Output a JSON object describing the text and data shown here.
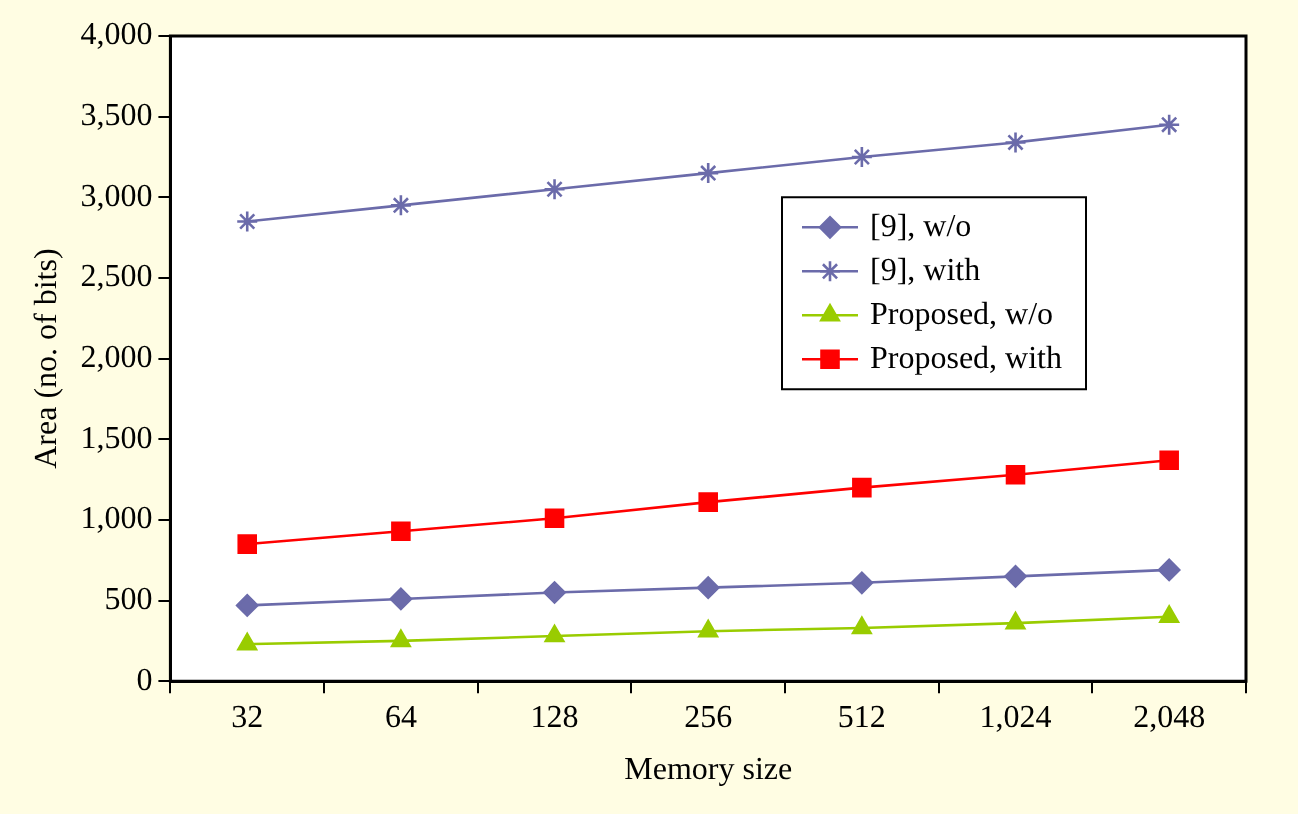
{
  "chart_data": {
    "type": "line",
    "xlabel": "Memory size",
    "ylabel": "Area (no. of bits)",
    "categories": [
      "32",
      "64",
      "128",
      "256",
      "512",
      "1,024",
      "2,048"
    ],
    "series": [
      {
        "name": "[9], w/o",
        "color": "#6b6baa",
        "marker": "diamond",
        "values": [
          470,
          510,
          550,
          580,
          610,
          650,
          690
        ]
      },
      {
        "name": "[9], with",
        "color": "#6b6baa",
        "marker": "cross",
        "values": [
          2850,
          2950,
          3050,
          3150,
          3250,
          3340,
          3450
        ]
      },
      {
        "name": "Proposed, w/o",
        "color": "#99cc00",
        "marker": "triangle",
        "values": [
          230,
          250,
          280,
          310,
          330,
          360,
          400
        ]
      },
      {
        "name": "Proposed, with",
        "color": "#ff0000",
        "marker": "square",
        "values": [
          850,
          930,
          1010,
          1110,
          1200,
          1280,
          1370
        ]
      }
    ],
    "ylim": [
      0,
      4000
    ],
    "yticks": [
      0,
      {
        "value": 500,
        "label": "500"
      },
      {
        "value": 1000,
        "label": "1,000"
      },
      {
        "value": 1500,
        "label": "1,500"
      },
      {
        "value": 2000,
        "label": "2,000"
      },
      {
        "value": 2500,
        "label": "2,500"
      },
      {
        "value": 3000,
        "label": "3,000"
      },
      {
        "value": 3500,
        "label": "3,500"
      },
      {
        "value": 4000,
        "label": "4,000"
      }
    ],
    "grid": false,
    "legend": "right",
    "line_style": "solid"
  }
}
